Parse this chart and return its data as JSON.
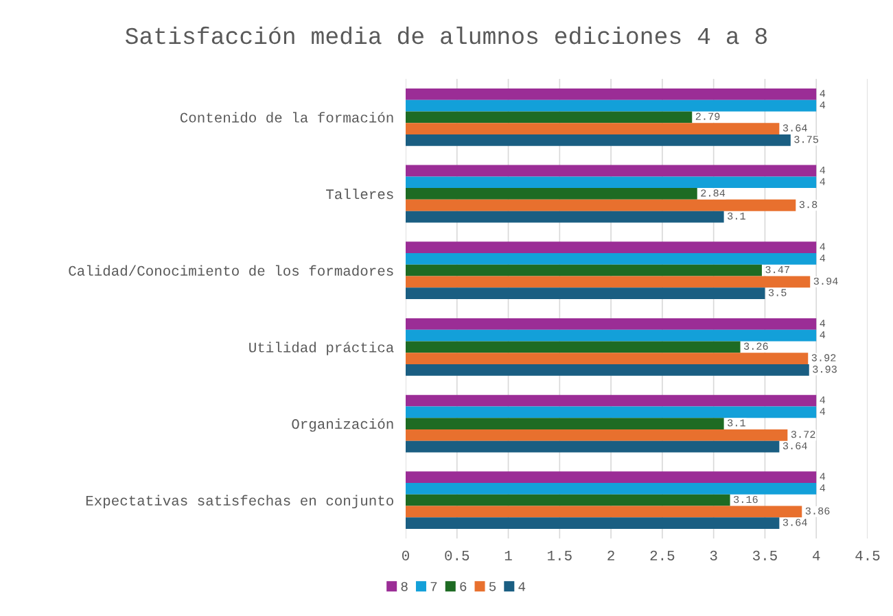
{
  "chart_data": {
    "type": "bar",
    "orientation": "horizontal",
    "title": "Satisfacción media de alumnos ediciones 4 a 8",
    "categories": [
      "Contenido de la formación",
      "Talleres",
      "Calidad/Conocimiento de los formadores",
      "Utilidad práctica",
      "Organización",
      "Expectativas satisfechas en conjunto"
    ],
    "series": [
      {
        "name": "8",
        "color": "#9b2d96",
        "values": [
          4,
          4,
          4,
          4,
          4,
          4
        ]
      },
      {
        "name": "7",
        "color": "#13a0d9",
        "values": [
          4,
          4,
          4,
          4,
          4,
          4
        ]
      },
      {
        "name": "6",
        "color": "#1e6b23",
        "values": [
          2.79,
          2.84,
          3.47,
          3.26,
          3.1,
          3.16
        ]
      },
      {
        "name": "5",
        "color": "#e8702e",
        "values": [
          3.64,
          3.8,
          3.94,
          3.92,
          3.72,
          3.86
        ]
      },
      {
        "name": "4",
        "color": "#1a5e82",
        "values": [
          3.75,
          3.1,
          3.5,
          3.93,
          3.64,
          3.64
        ]
      }
    ],
    "xlim": [
      0,
      4.5
    ],
    "xticks": [
      0,
      0.5,
      1,
      1.5,
      2,
      2.5,
      3,
      3.5,
      4,
      4.5
    ],
    "grid": "x",
    "legend": "bottom",
    "data_labels": true
  }
}
